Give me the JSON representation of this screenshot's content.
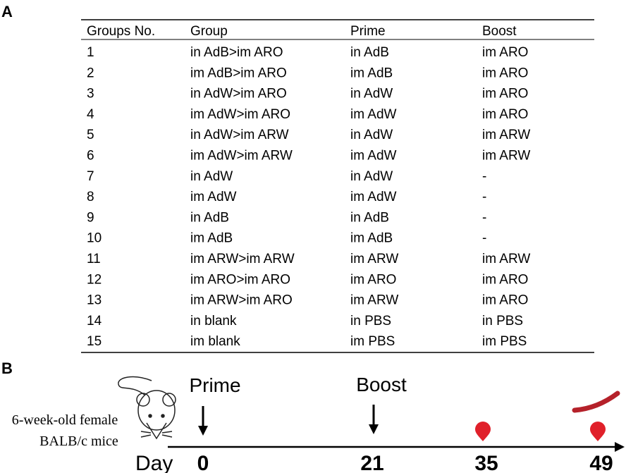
{
  "panel_a": {
    "label": "A",
    "table": {
      "headers": [
        "Groups No.",
        "Group",
        "Prime",
        "Boost"
      ],
      "rows": [
        [
          "1",
          "in AdB>im ARO",
          "in AdB",
          "im ARO"
        ],
        [
          "2",
          "im AdB>im ARO",
          "im AdB",
          "im ARO"
        ],
        [
          "3",
          "in AdW>im ARO",
          "in AdW",
          "im ARO"
        ],
        [
          "4",
          "im AdW>im ARO",
          "im AdW",
          "im ARO"
        ],
        [
          "5",
          "in AdW>im ARW",
          "in AdW",
          "im ARW"
        ],
        [
          "6",
          "im AdW>im ARW",
          "im AdW",
          "im ARW"
        ],
        [
          "7",
          "in AdW",
          "in AdW",
          "-"
        ],
        [
          "8",
          "im AdW",
          "im AdW",
          "-"
        ],
        [
          "9",
          "in AdB",
          "in AdB",
          "-"
        ],
        [
          "10",
          "im AdB",
          "im AdB",
          "-"
        ],
        [
          "11",
          "im ARW>im ARW",
          "im ARW",
          "im ARW"
        ],
        [
          "12",
          "im ARO>im ARO",
          "im ARO",
          "im ARO"
        ],
        [
          "13",
          "im ARW>im ARO",
          "im ARW",
          "im ARO"
        ],
        [
          "14",
          "in blank",
          "in PBS",
          "in PBS"
        ],
        [
          "15",
          "im blank",
          "im PBS",
          "im PBS"
        ]
      ]
    }
  },
  "panel_b": {
    "label": "B",
    "subject": [
      "6-week-old female",
      "BALB/c mice"
    ],
    "axis_label": "Day",
    "events": [
      {
        "name": "Prime",
        "day": "0"
      },
      {
        "name": "Boost",
        "day": "21"
      }
    ],
    "sampling_days": [
      "35",
      "49"
    ]
  }
}
